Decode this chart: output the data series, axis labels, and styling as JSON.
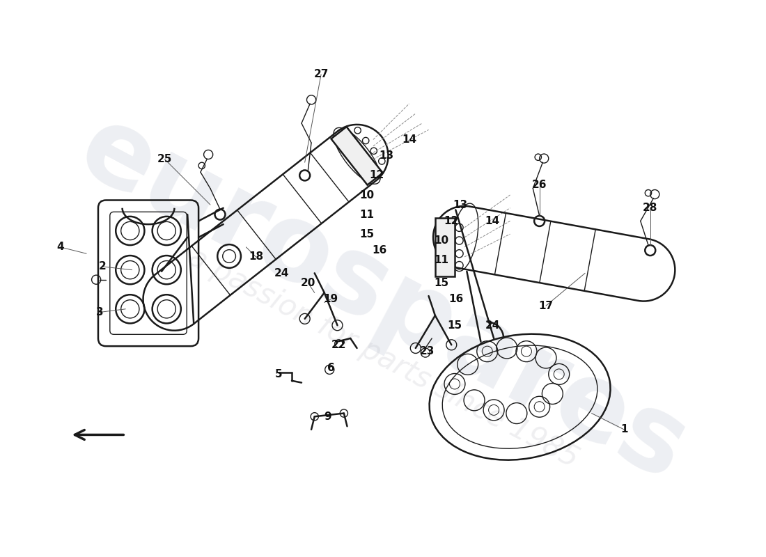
{
  "bg_color": "#ffffff",
  "line_color": "#1a1a1a",
  "text_color": "#111111",
  "wm1": "eurospares",
  "wm2": "a passion for parts since 1985",
  "figw": 11.0,
  "figh": 8.0,
  "dpi": 100,
  "parts": [
    [
      "1",
      920,
      640
    ],
    [
      "2",
      120,
      390
    ],
    [
      "3",
      115,
      460
    ],
    [
      "4",
      55,
      360
    ],
    [
      "5",
      390,
      555
    ],
    [
      "6",
      470,
      545
    ],
    [
      "9",
      465,
      620
    ],
    [
      "10",
      525,
      280
    ],
    [
      "10",
      640,
      350
    ],
    [
      "11",
      525,
      310
    ],
    [
      "11",
      640,
      380
    ],
    [
      "12",
      540,
      250
    ],
    [
      "12",
      655,
      320
    ],
    [
      "13",
      555,
      220
    ],
    [
      "13",
      668,
      295
    ],
    [
      "14",
      590,
      195
    ],
    [
      "14",
      718,
      320
    ],
    [
      "15",
      525,
      340
    ],
    [
      "15",
      640,
      415
    ],
    [
      "15",
      660,
      480
    ],
    [
      "16",
      545,
      365
    ],
    [
      "16",
      662,
      440
    ],
    [
      "17",
      800,
      450
    ],
    [
      "18",
      355,
      375
    ],
    [
      "19",
      470,
      440
    ],
    [
      "20",
      435,
      415
    ],
    [
      "22",
      482,
      510
    ],
    [
      "23",
      618,
      520
    ],
    [
      "24",
      395,
      400
    ],
    [
      "24",
      718,
      480
    ],
    [
      "25",
      215,
      225
    ],
    [
      "26",
      790,
      265
    ],
    [
      "27",
      455,
      95
    ],
    [
      "28",
      960,
      300
    ]
  ]
}
